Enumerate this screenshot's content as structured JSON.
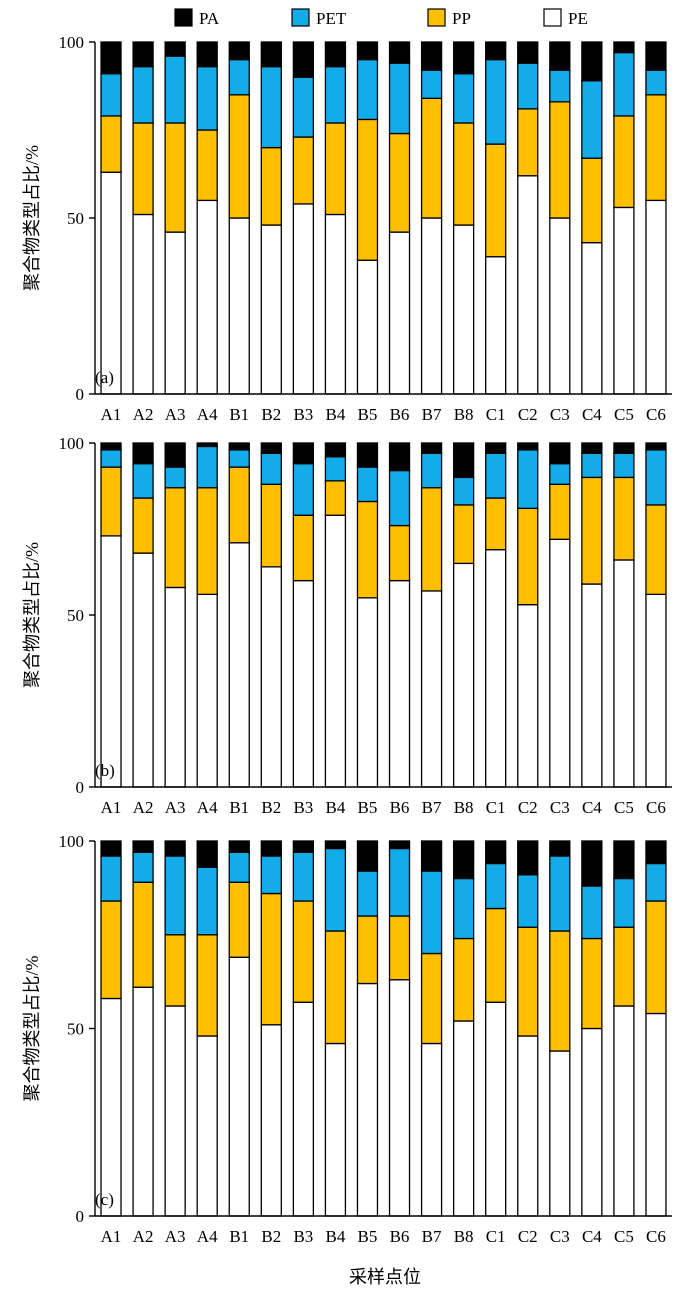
{
  "legend": [
    {
      "key": "PA",
      "label": "PA",
      "color": "#000000"
    },
    {
      "key": "PET",
      "label": "PET",
      "color": "#13ABE8"
    },
    {
      "key": "PP",
      "label": "PP",
      "color": "#FDBF00"
    },
    {
      "key": "PE",
      "label": "PE",
      "color": "#FFFFFF"
    }
  ],
  "xlabel": "采样点位",
  "chart_data": [
    {
      "type": "bar",
      "stacked": true,
      "panel_label": "(a)",
      "ylabel": "聚合物类型占比/%",
      "ylim": [
        0,
        100
      ],
      "yticks": [
        0,
        50,
        100
      ],
      "categories": [
        "A1",
        "A2",
        "A3",
        "A4",
        "B1",
        "B2",
        "B3",
        "B4",
        "B5",
        "B6",
        "B7",
        "B8",
        "C1",
        "C2",
        "C3",
        "C4",
        "C5",
        "C6"
      ],
      "series": [
        {
          "name": "PE",
          "color": "#FFFFFF",
          "values": [
            63,
            51,
            46,
            55,
            50,
            48,
            54,
            51,
            38,
            46,
            50,
            48,
            39,
            62,
            50,
            43,
            53,
            55
          ]
        },
        {
          "name": "PP",
          "color": "#FDBF00",
          "values": [
            16,
            26,
            31,
            20,
            35,
            22,
            19,
            26,
            40,
            28,
            34,
            29,
            32,
            19,
            33,
            24,
            26,
            30
          ]
        },
        {
          "name": "PET",
          "color": "#13ABE8",
          "values": [
            12,
            16,
            19,
            18,
            10,
            23,
            17,
            16,
            17,
            20,
            8,
            14,
            24,
            13,
            9,
            22,
            18,
            7
          ]
        },
        {
          "name": "PA",
          "color": "#000000",
          "values": [
            9,
            7,
            4,
            7,
            5,
            7,
            10,
            7,
            5,
            6,
            8,
            9,
            5,
            6,
            8,
            11,
            3,
            8
          ]
        }
      ]
    },
    {
      "type": "bar",
      "stacked": true,
      "panel_label": "(b)",
      "ylabel": "聚合物类型占比/%",
      "ylim": [
        0,
        100
      ],
      "yticks": [
        0,
        50,
        100
      ],
      "categories": [
        "A1",
        "A2",
        "A3",
        "A4",
        "B1",
        "B2",
        "B3",
        "B4",
        "B5",
        "B6",
        "B7",
        "B8",
        "C1",
        "C2",
        "C3",
        "C4",
        "C5",
        "C6"
      ],
      "series": [
        {
          "name": "PE",
          "color": "#FFFFFF",
          "values": [
            73,
            68,
            58,
            56,
            71,
            64,
            60,
            79,
            55,
            60,
            57,
            65,
            69,
            53,
            72,
            59,
            66,
            56
          ]
        },
        {
          "name": "PP",
          "color": "#FDBF00",
          "values": [
            20,
            16,
            29,
            31,
            22,
            24,
            19,
            10,
            28,
            16,
            30,
            17,
            15,
            28,
            16,
            31,
            24,
            26
          ]
        },
        {
          "name": "PET",
          "color": "#13ABE8",
          "values": [
            5,
            10,
            6,
            12,
            5,
            9,
            15,
            7,
            10,
            16,
            10,
            8,
            13,
            17,
            6,
            7,
            7,
            16
          ]
        },
        {
          "name": "PA",
          "color": "#000000",
          "values": [
            2,
            6,
            7,
            1,
            2,
            3,
            6,
            4,
            7,
            8,
            3,
            10,
            3,
            2,
            6,
            3,
            3,
            2
          ]
        }
      ]
    },
    {
      "type": "bar",
      "stacked": true,
      "panel_label": "(c)",
      "ylabel": "聚合物类型占比/%",
      "ylim": [
        0,
        100
      ],
      "yticks": [
        0,
        50,
        100
      ],
      "categories": [
        "A1",
        "A2",
        "A3",
        "A4",
        "B1",
        "B2",
        "B3",
        "B4",
        "B5",
        "B6",
        "B7",
        "B8",
        "C1",
        "C2",
        "C3",
        "C4",
        "C5",
        "C6"
      ],
      "series": [
        {
          "name": "PE",
          "color": "#FFFFFF",
          "values": [
            58,
            61,
            56,
            48,
            69,
            51,
            57,
            46,
            62,
            63,
            46,
            52,
            57,
            48,
            44,
            50,
            56,
            54
          ]
        },
        {
          "name": "PP",
          "color": "#FDBF00",
          "values": [
            26,
            28,
            19,
            27,
            20,
            35,
            27,
            30,
            18,
            17,
            24,
            22,
            25,
            29,
            32,
            24,
            21,
            30
          ]
        },
        {
          "name": "PET",
          "color": "#13ABE8",
          "values": [
            12,
            8,
            21,
            18,
            8,
            10,
            13,
            22,
            12,
            18,
            22,
            16,
            12,
            14,
            20,
            14,
            13,
            10
          ]
        },
        {
          "name": "PA",
          "color": "#000000",
          "values": [
            4,
            3,
            4,
            7,
            3,
            4,
            3,
            2,
            8,
            2,
            8,
            10,
            6,
            9,
            4,
            12,
            10,
            6
          ]
        }
      ]
    }
  ]
}
